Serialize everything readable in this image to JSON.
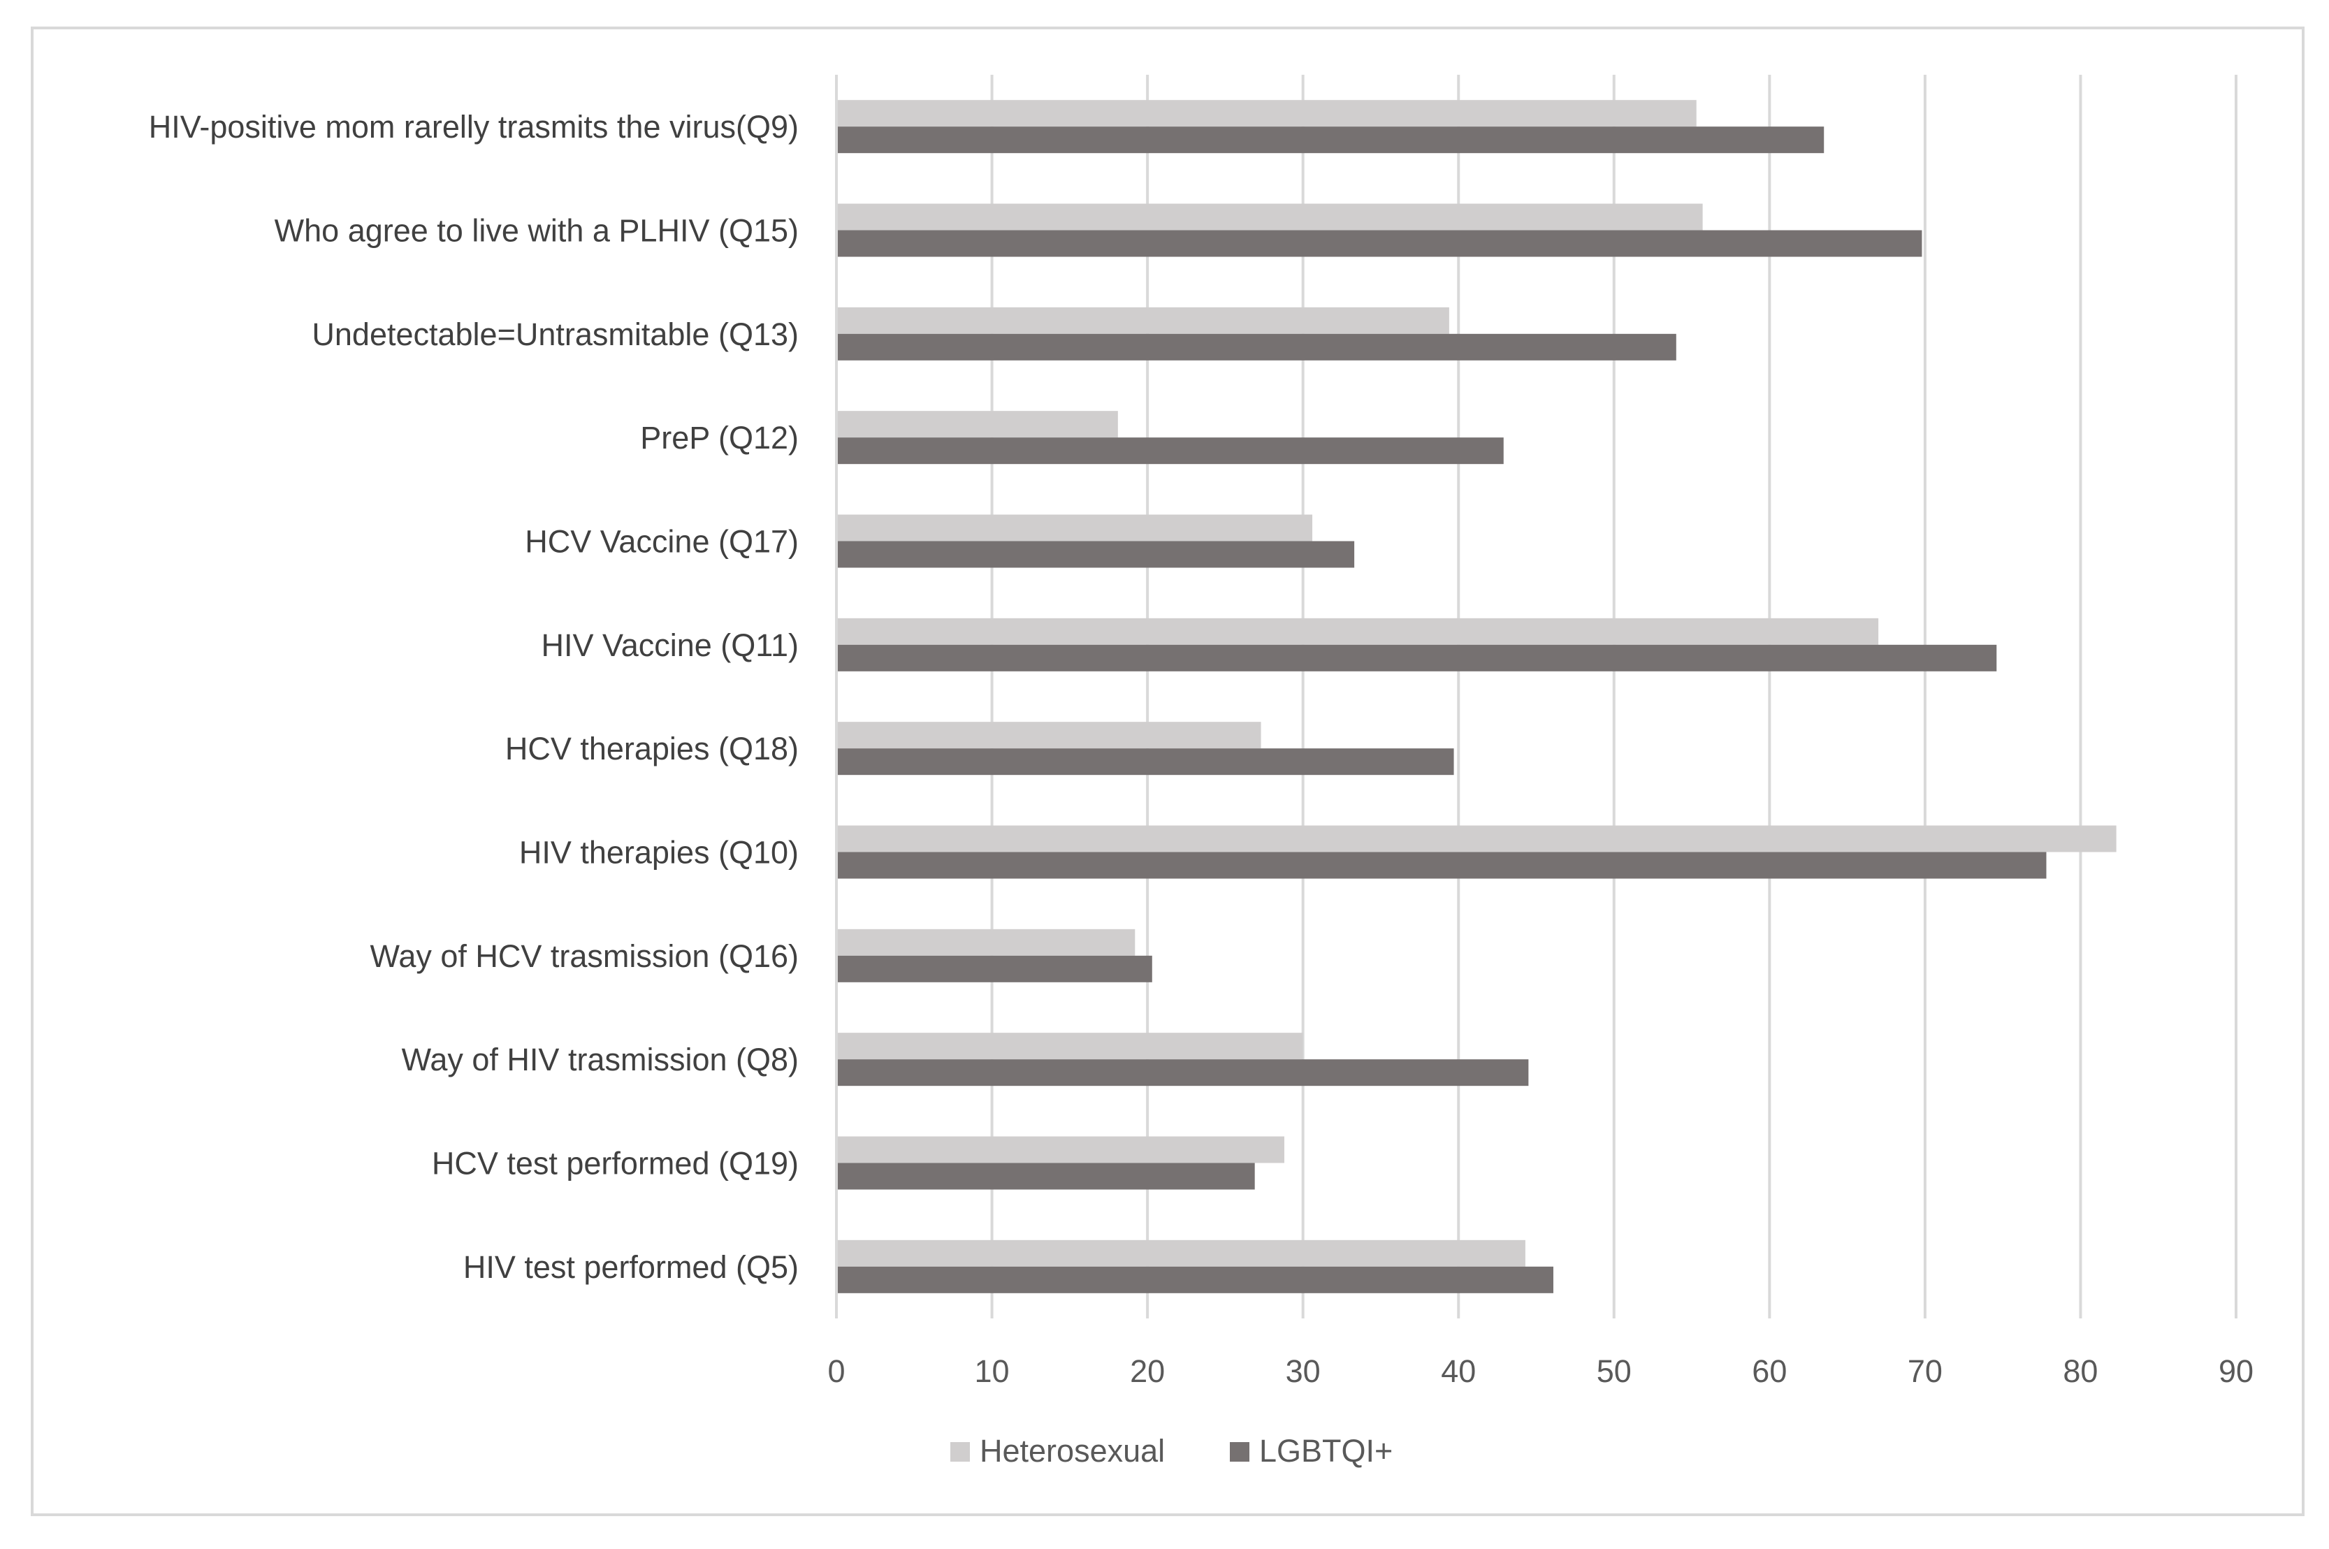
{
  "chart_data": {
    "type": "bar",
    "orientation": "horizontal",
    "title": "",
    "xlabel": "",
    "ylabel": "",
    "xlim": [
      0,
      90
    ],
    "xticks": [
      0,
      10,
      20,
      30,
      40,
      50,
      60,
      70,
      80,
      90
    ],
    "grid": "vertical",
    "legend_position": "bottom",
    "categories": [
      "HIV-positive mom rarelly trasmits the virus(Q9)",
      "Who agree to live with a PLHIV (Q15)",
      "Undetectable=Untrasmitable (Q13)",
      "PreP (Q12)",
      "HCV Vaccine (Q17)",
      "HIV Vaccine (Q11)",
      "HCV therapies (Q18)",
      "HIV therapies (Q10)",
      "Way of HCV trasmission (Q16)",
      "Way of HIV trasmission (Q8)",
      "HCV test performed (Q19)",
      "HIV test performed (Q5)"
    ],
    "series": [
      {
        "name": "Heterosexual",
        "color": "#d0cece",
        "values": [
          55.3,
          55.7,
          39.4,
          18.1,
          30.6,
          67.0,
          27.3,
          82.3,
          19.2,
          30.0,
          28.8,
          44.3
        ]
      },
      {
        "name": "LGBTQI+",
        "color": "#767171",
        "values": [
          63.5,
          69.8,
          54.0,
          42.9,
          33.3,
          74.6,
          39.7,
          77.8,
          20.3,
          44.5,
          26.9,
          46.1
        ]
      }
    ]
  }
}
